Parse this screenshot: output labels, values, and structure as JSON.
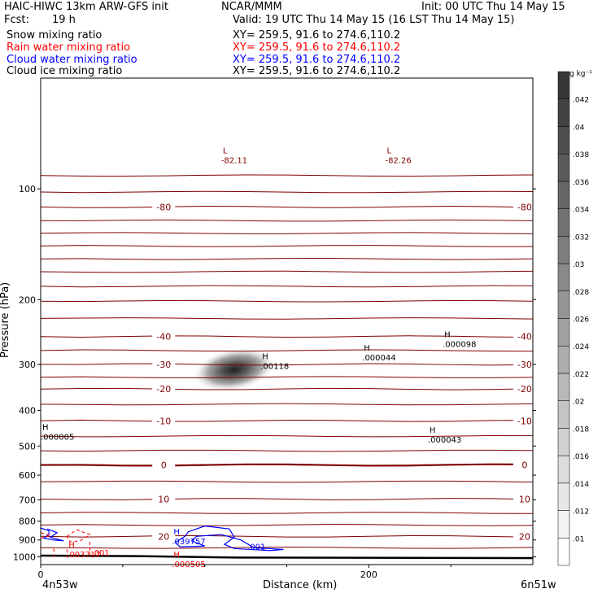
{
  "header": {
    "title_left": "HAIC-HIWC 13km ARW-GFS init",
    "source": "NCAR/MMM",
    "init": "Init: 00 UTC Thu 14 May 15",
    "fcst_label": "Fcst:",
    "fcst_value": "19 h",
    "valid": "Valid: 19 UTC Thu 14 May 15 (16 LST Thu 14 May 15)",
    "fields": [
      {
        "name": "Snow mixing ratio",
        "xy": "XY= 259.5, 91.6 to 274.6,110.2",
        "color": "#000000"
      },
      {
        "name": "Rain water mixing ratio",
        "xy": "XY= 259.5, 91.6 to 274.6,110.2",
        "color": "#ff0000"
      },
      {
        "name": "Cloud water mixing ratio",
        "xy": "XY= 259.5, 91.6 to 274.6,110.2",
        "color": "#0000ff"
      },
      {
        "name": "Cloud ice mixing ratio",
        "xy": "XY= 259.5, 91.6 to 274.6,110.2",
        "color": "#000000"
      }
    ]
  },
  "chart_data": {
    "type": "contour",
    "xlabel": "Distance (km)",
    "ylabel": "Pressure (hPa)",
    "x_range": [
      0,
      300
    ],
    "y_range": [
      1050,
      50
    ],
    "y_scale": "log",
    "x_ticks": [
      0,
      200
    ],
    "y_ticks": [
      100,
      200,
      300,
      400,
      500,
      600,
      700,
      800,
      900,
      1000
    ],
    "x_endpoint_labels": [
      "4n53w",
      "6n51w"
    ],
    "colorbar": {
      "unit": "g kg⁻¹",
      "levels": [
        ".01",
        ".012",
        ".014",
        ".016",
        ".018",
        ".02",
        ".022",
        ".024",
        ".026",
        ".028",
        ".03",
        ".032",
        ".034",
        ".036",
        ".038",
        ".04",
        ".042"
      ]
    },
    "temperature_contours": [
      {
        "label": "-80",
        "p": 112,
        "color": "#800000"
      },
      {
        "label": "-40",
        "p": 252,
        "color": "#800000"
      },
      {
        "label": "-30",
        "p": 300,
        "color": "#800000"
      },
      {
        "label": "-20",
        "p": 350,
        "color": "#800000"
      },
      {
        "label": "-10",
        "p": 427,
        "color": "#800000"
      },
      {
        "label": "0",
        "p": 563,
        "color": "#800000"
      },
      {
        "label": "10",
        "p": 697,
        "color": "#800000"
      },
      {
        "label": "20",
        "p": 880,
        "color": "#800000"
      }
    ],
    "extrema": [
      {
        "kind": "L",
        "value": "-82.11",
        "x": 110,
        "p": 80,
        "color": "#800000"
      },
      {
        "kind": "L",
        "value": "-82.26",
        "x": 210,
        "p": 80,
        "color": "#800000"
      },
      {
        "kind": "H",
        "value": ".00118",
        "x": 134,
        "p": 290,
        "color": "#000000"
      },
      {
        "kind": "H",
        "value": ".000044",
        "x": 196,
        "p": 275,
        "color": "#000000"
      },
      {
        "kind": "H",
        "value": ".000098",
        "x": 245,
        "p": 253,
        "color": "#000000"
      },
      {
        "kind": "H",
        "value": ".000005",
        "x": 0,
        "p": 452,
        "color": "#000000"
      },
      {
        "kind": "H",
        "value": ".000043",
        "x": 236,
        "p": 460,
        "color": "#000000"
      },
      {
        "kind": "H",
        "value": ".039757",
        "x": 80,
        "p": 870,
        "color": "#0000ff"
      },
      {
        "kind": "H",
        "value": ".003717",
        "x": 16,
        "p": 943,
        "color": "#ff0000"
      },
      {
        "kind": "H",
        "value": ".000505",
        "x": 80,
        "p": 1002,
        "color": "#ff0000"
      }
    ],
    "contour_labels": [
      {
        "value": ".001",
        "x": 31,
        "p": 993,
        "color": "#ff0000"
      },
      {
        "value": ".001",
        "x": 126,
        "p": 955,
        "color": "#0000ff"
      }
    ],
    "snow_max_gkg": 0.042,
    "snow_center": {
      "x": 118,
      "p": 310
    }
  }
}
